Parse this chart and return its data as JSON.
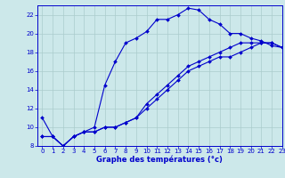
{
  "xlabel": "Graphe des températures (°c)",
  "background_color": "#cce8ea",
  "grid_color": "#aacccc",
  "line_color": "#0000cc",
  "x": [
    0,
    1,
    2,
    3,
    4,
    5,
    6,
    7,
    8,
    9,
    10,
    11,
    12,
    13,
    14,
    15,
    16,
    17,
    18,
    19,
    20,
    21,
    22,
    23
  ],
  "line1": [
    11,
    9,
    8,
    9,
    9.5,
    10,
    14.5,
    17,
    19,
    19.5,
    20.2,
    21.5,
    21.5,
    22.0,
    22.7,
    22.5,
    21.5,
    21.0,
    20.0,
    20.0,
    19.5,
    19.2,
    18.7,
    18.5
  ],
  "line2": [
    9,
    9,
    8,
    9,
    9.5,
    9.5,
    10,
    10,
    10.5,
    11,
    12,
    13,
    14,
    15,
    16,
    16.5,
    17,
    17.5,
    17.5,
    18,
    18.5,
    19,
    19,
    18.5
  ],
  "line3": [
    9,
    9,
    8,
    9,
    9.5,
    9.5,
    10,
    10,
    10.5,
    11,
    12.5,
    13.5,
    14.5,
    15.5,
    16.5,
    17,
    17.5,
    18,
    18.5,
    19,
    19,
    19,
    19,
    18.5
  ],
  "ylim": [
    8,
    23
  ],
  "xlim": [
    -0.5,
    23
  ],
  "yticks": [
    8,
    10,
    12,
    14,
    16,
    18,
    20,
    22
  ],
  "xticks": [
    0,
    1,
    2,
    3,
    4,
    5,
    6,
    7,
    8,
    9,
    10,
    11,
    12,
    13,
    14,
    15,
    16,
    17,
    18,
    19,
    20,
    21,
    22,
    23
  ],
  "marker_size": 2.0,
  "linewidth": 0.8,
  "tick_fontsize": 5.0,
  "xlabel_fontsize": 6.0
}
